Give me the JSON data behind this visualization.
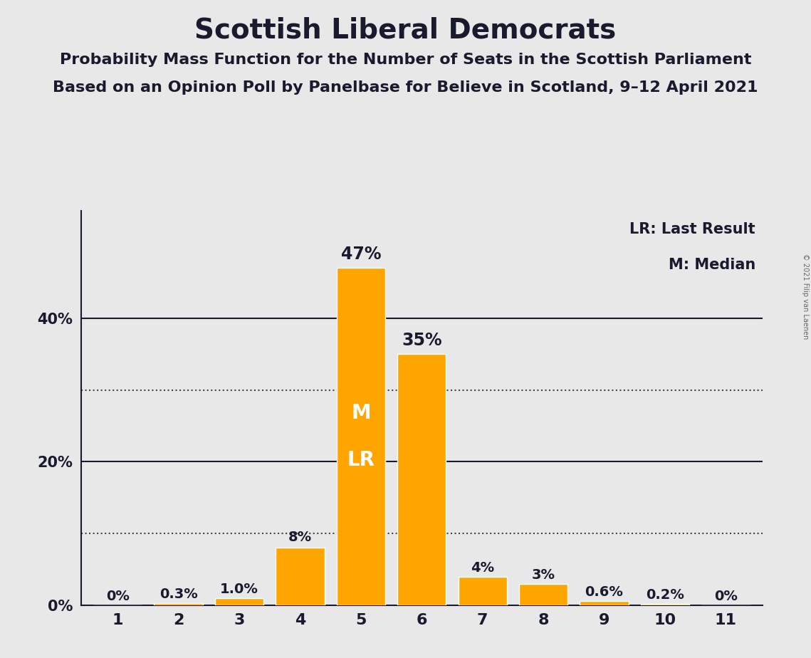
{
  "title": "Scottish Liberal Democrats",
  "subtitle1": "Probability Mass Function for the Number of Seats in the Scottish Parliament",
  "subtitle2": "Based on an Opinion Poll by Panelbase for Believe in Scotland, 9–12 April 2021",
  "copyright_text": "© 2021 Filip van Laenen",
  "categories": [
    1,
    2,
    3,
    4,
    5,
    6,
    7,
    8,
    9,
    10,
    11
  ],
  "values": [
    0.0,
    0.3,
    1.0,
    8.0,
    47.0,
    35.0,
    4.0,
    3.0,
    0.6,
    0.2,
    0.0
  ],
  "labels": [
    "0%",
    "0.3%",
    "1.0%",
    "8%",
    "47%",
    "35%",
    "4%",
    "3%",
    "0.6%",
    "0.2%",
    "0%"
  ],
  "bar_color": "#FFA500",
  "background_color": "#E8E8E8",
  "median_bar": 5,
  "last_result_bar": 5,
  "median_label": "M",
  "last_result_label": "LR",
  "legend_lr": "LR: Last Result",
  "legend_m": "M: Median",
  "yticks": [
    0,
    20,
    40
  ],
  "ytick_labels": [
    "0%",
    "20%",
    "40%"
  ],
  "dotted_lines": [
    10,
    30
  ],
  "solid_lines": [
    20,
    40
  ],
  "ylim": [
    0,
    55
  ],
  "title_fontsize": 28,
  "subtitle_fontsize": 16,
  "tick_fontsize": 15,
  "legend_fontsize": 15,
  "bar_label_fontsize": 14,
  "ml_fontsize": 20,
  "white_text_color": "#FFFFFF",
  "dark_text_color": "#1a1a2e"
}
